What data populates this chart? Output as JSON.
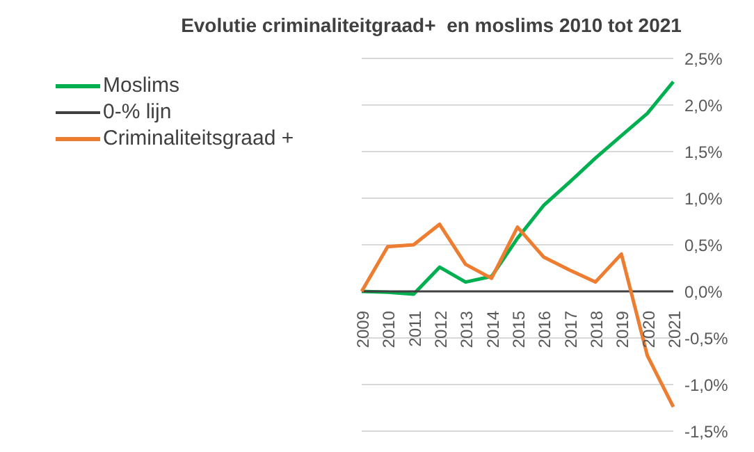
{
  "chart_data": {
    "type": "line",
    "title": "Evolutie criminaliteitgraad+  en moslims 2010 tot 2021",
    "categories": [
      "2009",
      "2010",
      "2011",
      "2012",
      "2013",
      "2014",
      "2015",
      "2016",
      "2017",
      "2018",
      "2019",
      "2020",
      "2021"
    ],
    "series": [
      {
        "name": "Moslims",
        "color": "#00b050",
        "values": [
          0,
          -0.01,
          -0.03,
          0.26,
          0.1,
          0.16,
          0.57,
          0.92,
          1.17,
          1.43,
          1.67,
          1.91,
          2.25
        ]
      },
      {
        "name": "0-% lijn",
        "color": "#404040",
        "values": [
          0,
          0,
          0,
          0,
          0,
          0,
          0,
          0,
          0,
          0,
          0,
          0,
          0
        ]
      },
      {
        "name": "Criminaliteitsgraad +",
        "color": "#ed7d31",
        "values": [
          0,
          0.48,
          0.5,
          0.72,
          0.29,
          0.14,
          0.69,
          0.37,
          0.23,
          0.1,
          0.4,
          -0.69,
          -1.24
        ]
      }
    ],
    "ylim": [
      -1.5,
      2.5
    ],
    "yticks": [
      {
        "value": -1.5,
        "label": "-1,5%"
      },
      {
        "value": -1,
        "label": "-1,0%"
      },
      {
        "value": -0.5,
        "label": "-0,5%"
      },
      {
        "value": 0,
        "label": "0,0%"
      },
      {
        "value": 0.5,
        "label": "0,5%"
      },
      {
        "value": 1,
        "label": "1,0%"
      },
      {
        "value": 1.5,
        "label": "1,5%"
      },
      {
        "value": 2,
        "label": "2,0%"
      },
      {
        "value": 2.5,
        "label": "2,5%"
      }
    ],
    "grid": "y",
    "legend": "top left",
    "marker": "none",
    "line_style": "solid"
  }
}
